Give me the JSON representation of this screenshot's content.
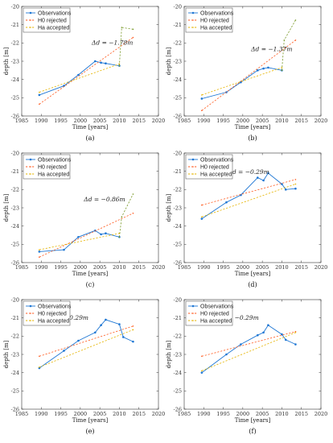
{
  "colors": {
    "observations": "#1f77d4",
    "h0": "#ff5a1f",
    "ha": "#e6b400",
    "trend": "#7a9a2a"
  },
  "chart_data": [
    {
      "type": "line",
      "panel": "(a)",
      "xlabel": "Time [years]",
      "ylabel": "depth [m]",
      "xlim": [
        1985,
        2020
      ],
      "ylim": [
        -26,
        -20
      ],
      "xticks": [
        1985,
        1990,
        1995,
        2000,
        2005,
        2010,
        2015,
        2020
      ],
      "yticks": [
        -20,
        -21,
        -22,
        -23,
        -24,
        -25,
        -26
      ],
      "annotation": "Δd = −1.78m",
      "legend": [
        "Observations",
        "H0 rejected",
        "Ha accepted"
      ],
      "series": [
        {
          "name": "Observations",
          "x": [
            1989.5,
            1995.8,
            1999.5,
            2003.8,
            2005.3,
            2006.5,
            2010.0
          ],
          "y": [
            -24.85,
            -24.35,
            -23.75,
            -23.0,
            -23.08,
            -23.12,
            -23.25
          ]
        },
        {
          "name": "H0 rejected",
          "x": [
            1989.5,
            2013.5
          ],
          "y": [
            -25.35,
            -21.7
          ]
        },
        {
          "name": "Ha accepted",
          "x": [
            1989.5,
            2010.0
          ],
          "y": [
            -24.7,
            -23.15
          ]
        },
        {
          "name": "",
          "x": [
            2010.0,
            2010.6,
            2013.5
          ],
          "y": [
            -23.25,
            -21.15,
            -21.25
          ]
        }
      ]
    },
    {
      "type": "line",
      "panel": "(b)",
      "xlabel": "Time [years]",
      "ylabel": "depth [m]",
      "xlim": [
        1985,
        2020
      ],
      "ylim": [
        -26,
        -20
      ],
      "xticks": [
        1985,
        1990,
        1995,
        2000,
        2005,
        2010,
        2015,
        2020
      ],
      "yticks": [
        -20,
        -21,
        -22,
        -23,
        -24,
        -25,
        -26
      ],
      "annotation": "Δd = −1.37m",
      "legend": [
        "Observations",
        "H0 rejected",
        "Ha accepted"
      ],
      "series": [
        {
          "name": "Observations",
          "x": [
            1989.5,
            1995.8,
            1999.5,
            2003.8,
            2005.3,
            2006.5,
            2010.0
          ],
          "y": [
            -25.05,
            -24.7,
            -24.15,
            -23.5,
            -23.4,
            -23.35,
            -23.5
          ]
        },
        {
          "name": "H0 rejected",
          "x": [
            1989.5,
            2013.5
          ],
          "y": [
            -25.7,
            -21.85
          ]
        },
        {
          "name": "Ha accepted",
          "x": [
            1989.5,
            2010.0
          ],
          "y": [
            -24.85,
            -23.35
          ]
        },
        {
          "name": "",
          "x": [
            2010.0,
            2010.6,
            2013.5
          ],
          "y": [
            -23.5,
            -21.85,
            -20.75
          ]
        }
      ]
    },
    {
      "type": "line",
      "panel": "(c)",
      "xlabel": "Time [years]",
      "ylabel": "depth [m]",
      "xlim": [
        1985,
        2020
      ],
      "ylim": [
        -26,
        -20
      ],
      "xticks": [
        1985,
        1990,
        1995,
        2000,
        2005,
        2010,
        2015,
        2020
      ],
      "yticks": [
        -20,
        -21,
        -22,
        -23,
        -24,
        -25,
        -26
      ],
      "annotation": "Δd = −0.86m",
      "legend": [
        "Observations",
        "H0 rejected",
        "Ha accepted"
      ],
      "series": [
        {
          "name": "Observations",
          "x": [
            1989.5,
            1995.8,
            1999.5,
            2003.8,
            2005.3,
            2006.5,
            2010.0
          ],
          "y": [
            -25.4,
            -25.3,
            -24.6,
            -24.25,
            -24.45,
            -24.4,
            -24.6
          ]
        },
        {
          "name": "H0 rejected",
          "x": [
            1989.5,
            2013.5
          ],
          "y": [
            -25.7,
            -23.3
          ]
        },
        {
          "name": "Ha accepted",
          "x": [
            1989.5,
            2010.0
          ],
          "y": [
            -25.3,
            -24.4
          ]
        },
        {
          "name": "",
          "x": [
            2010.0,
            2010.6,
            2013.5
          ],
          "y": [
            -24.6,
            -23.5,
            -22.25
          ]
        }
      ]
    },
    {
      "type": "line",
      "panel": "(d)",
      "xlabel": "Time [years]",
      "ylabel": "depth [m]",
      "xlim": [
        1985,
        2020
      ],
      "ylim": [
        -26,
        -20
      ],
      "xticks": [
        1985,
        1990,
        1995,
        2000,
        2005,
        2010,
        2015,
        2020
      ],
      "yticks": [
        -20,
        -21,
        -22,
        -23,
        -24,
        -25,
        -26
      ],
      "annotation": "Δd = −0.29m",
      "legend": [
        "Observations",
        "H0 rejected",
        "Ha accepted"
      ],
      "series": [
        {
          "name": "Observations",
          "x": [
            1989.5,
            1995.8,
            1999.5,
            2003.8,
            2005.3,
            2006.5,
            2010.0,
            2011.0,
            2013.5
          ],
          "y": [
            -23.6,
            -22.7,
            -22.3,
            -21.35,
            -21.5,
            -21.1,
            -21.7,
            -22.0,
            -21.95
          ]
        },
        {
          "name": "H0 rejected",
          "x": [
            1989.5,
            2013.5
          ],
          "y": [
            -22.85,
            -21.45
          ]
        },
        {
          "name": "Ha accepted",
          "x": [
            1989.5,
            2013.5
          ],
          "y": [
            -23.5,
            -21.7
          ]
        }
      ]
    },
    {
      "type": "line",
      "panel": "(e)",
      "xlabel": "Time [years]",
      "ylabel": "depth [m]",
      "xlim": [
        1985,
        2020
      ],
      "ylim": [
        -26,
        -20
      ],
      "xticks": [
        1985,
        1990,
        1995,
        2000,
        2005,
        2010,
        2015,
        2020
      ],
      "yticks": [
        -20,
        -21,
        -22,
        -23,
        -24,
        -25,
        -26
      ],
      "annotation": "Δd = −0.29m",
      "legend": [
        "Observations",
        "H0 rejected",
        "Ha accepted"
      ],
      "series": [
        {
          "name": "Observations",
          "x": [
            1989.5,
            1995.8,
            1999.5,
            2003.8,
            2005.3,
            2006.5,
            2010.0,
            2011.0,
            2013.5
          ],
          "y": [
            -23.75,
            -22.8,
            -22.25,
            -21.8,
            -21.4,
            -21.1,
            -21.35,
            -22.05,
            -22.3
          ]
        },
        {
          "name": "H0 rejected",
          "x": [
            1989.5,
            2013.5
          ],
          "y": [
            -23.1,
            -21.45
          ]
        },
        {
          "name": "Ha accepted",
          "x": [
            1989.5,
            2013.5
          ],
          "y": [
            -23.7,
            -21.65
          ]
        }
      ]
    },
    {
      "type": "line",
      "panel": "(f)",
      "xlabel": "Time [years]",
      "ylabel": "depth [m]",
      "xlim": [
        1985,
        2020
      ],
      "ylim": [
        -26,
        -20
      ],
      "xticks": [
        1985,
        1990,
        1995,
        2000,
        2005,
        2010,
        2015,
        2020
      ],
      "yticks": [
        -20,
        -21,
        -22,
        -23,
        -24,
        -25,
        -26
      ],
      "annotation": "Δd = −0.29m",
      "legend": [
        "Observations",
        "H0 rejected",
        "Ha accepted"
      ],
      "series": [
        {
          "name": "Observations",
          "x": [
            1989.5,
            1995.8,
            1999.5,
            2003.8,
            2005.3,
            2006.5,
            2010.0,
            2011.0,
            2013.5
          ],
          "y": [
            -24.0,
            -23.0,
            -22.45,
            -21.95,
            -21.8,
            -21.4,
            -21.9,
            -22.2,
            -22.45
          ]
        },
        {
          "name": "H0 rejected",
          "x": [
            1989.5,
            2013.5
          ],
          "y": [
            -23.1,
            -21.75
          ]
        },
        {
          "name": "Ha accepted",
          "x": [
            1989.5,
            2013.5
          ],
          "y": [
            -23.9,
            -21.8
          ]
        }
      ]
    }
  ]
}
